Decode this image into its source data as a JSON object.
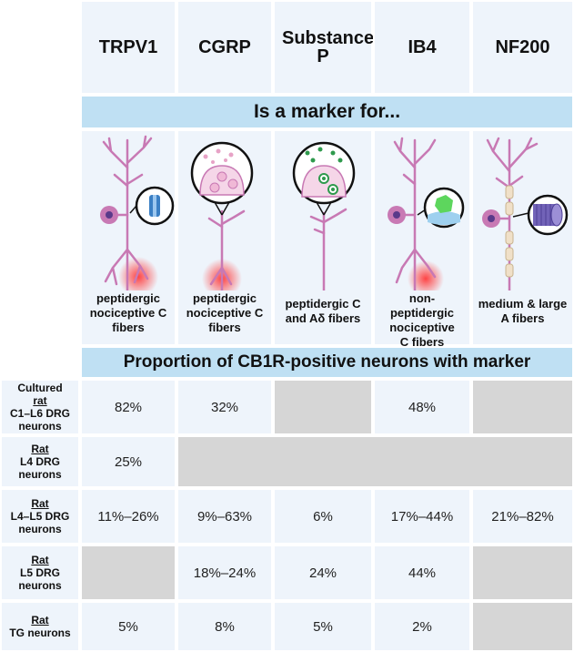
{
  "columns": [
    "TRPV1",
    "CGRP",
    "Substance P",
    "IB4",
    "NF200"
  ],
  "banner_marker": "Is a marker for...",
  "marker_descriptions": [
    "peptidergic nociceptive C fibers",
    "peptidergic nociceptive C fibers",
    "peptidergic C and Aδ fibers",
    "non-peptidergic nociceptive C fibers",
    "medium & large A fibers"
  ],
  "banner_proportion": "Proportion of CB1R-positive neurons with marker",
  "rows": [
    {
      "prefix": "Cultured",
      "species": "rat",
      "suffix": "C1–L6 DRG neurons",
      "values": [
        "82%",
        "32%",
        "",
        "48%",
        ""
      ]
    },
    {
      "prefix": "",
      "species": "Rat",
      "suffix": "L4 DRG neurons",
      "values": [
        "25%",
        "",
        "",
        "",
        ""
      ]
    },
    {
      "prefix": "",
      "species": "Rat",
      "suffix": "L4–L5 DRG neurons",
      "values": [
        "11%–26%",
        "9%–63%",
        "6%",
        "17%–44%",
        "21%–82%"
      ]
    },
    {
      "prefix": "",
      "species": "Rat",
      "suffix": "L5 DRG neurons",
      "values": [
        "",
        "18%–24%",
        "24%",
        "44%",
        ""
      ]
    },
    {
      "prefix": "",
      "species": "Rat",
      "suffix": "TG neurons",
      "values": [
        "5%",
        "8%",
        "5%",
        "2%",
        ""
      ]
    }
  ],
  "colors": {
    "cell_bg": "#eef4fb",
    "banner_bg": "#bfe0f3",
    "empty_cell": "#d6d6d6",
    "neuron": "#c879b4",
    "pain_glow": "#ff3b3b",
    "trpv1_channel": "#3b7fc4",
    "cgrp_vesicle": "#e7a3c6",
    "substance_p_granule": "#2f9a4d",
    "ib4_binding": "#5dd65d",
    "nf200_bundle": "#7263b8"
  },
  "icons": [
    "trpv1-neuron-icon",
    "cgrp-neuron-icon",
    "substance-p-neuron-icon",
    "ib4-neuron-icon",
    "nf200-neuron-icon"
  ]
}
